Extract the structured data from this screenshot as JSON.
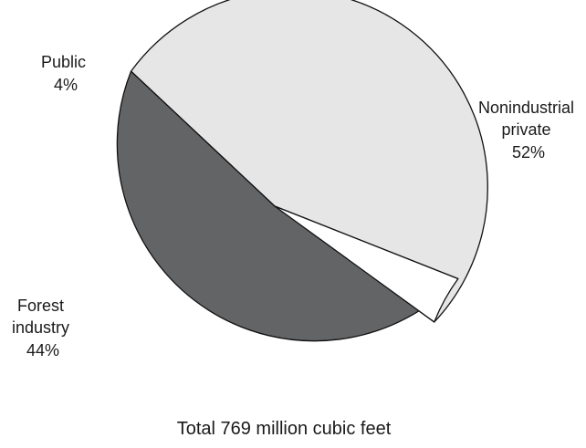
{
  "chart_data": {
    "type": "pie",
    "caption": "Total 769 million cubic feet",
    "slices": [
      {
        "label_lines": [
          "Nonindustrial",
          "private"
        ],
        "percent_label": "52%",
        "value": 52,
        "color": "#e6e6e6"
      },
      {
        "label_lines": [
          "Forest",
          "industry"
        ],
        "percent_label": "44%",
        "value": 44,
        "color": "#636466"
      },
      {
        "label_lines": [
          "Public"
        ],
        "percent_label": "4%",
        "value": 4,
        "color": "#ffffff"
      }
    ]
  }
}
